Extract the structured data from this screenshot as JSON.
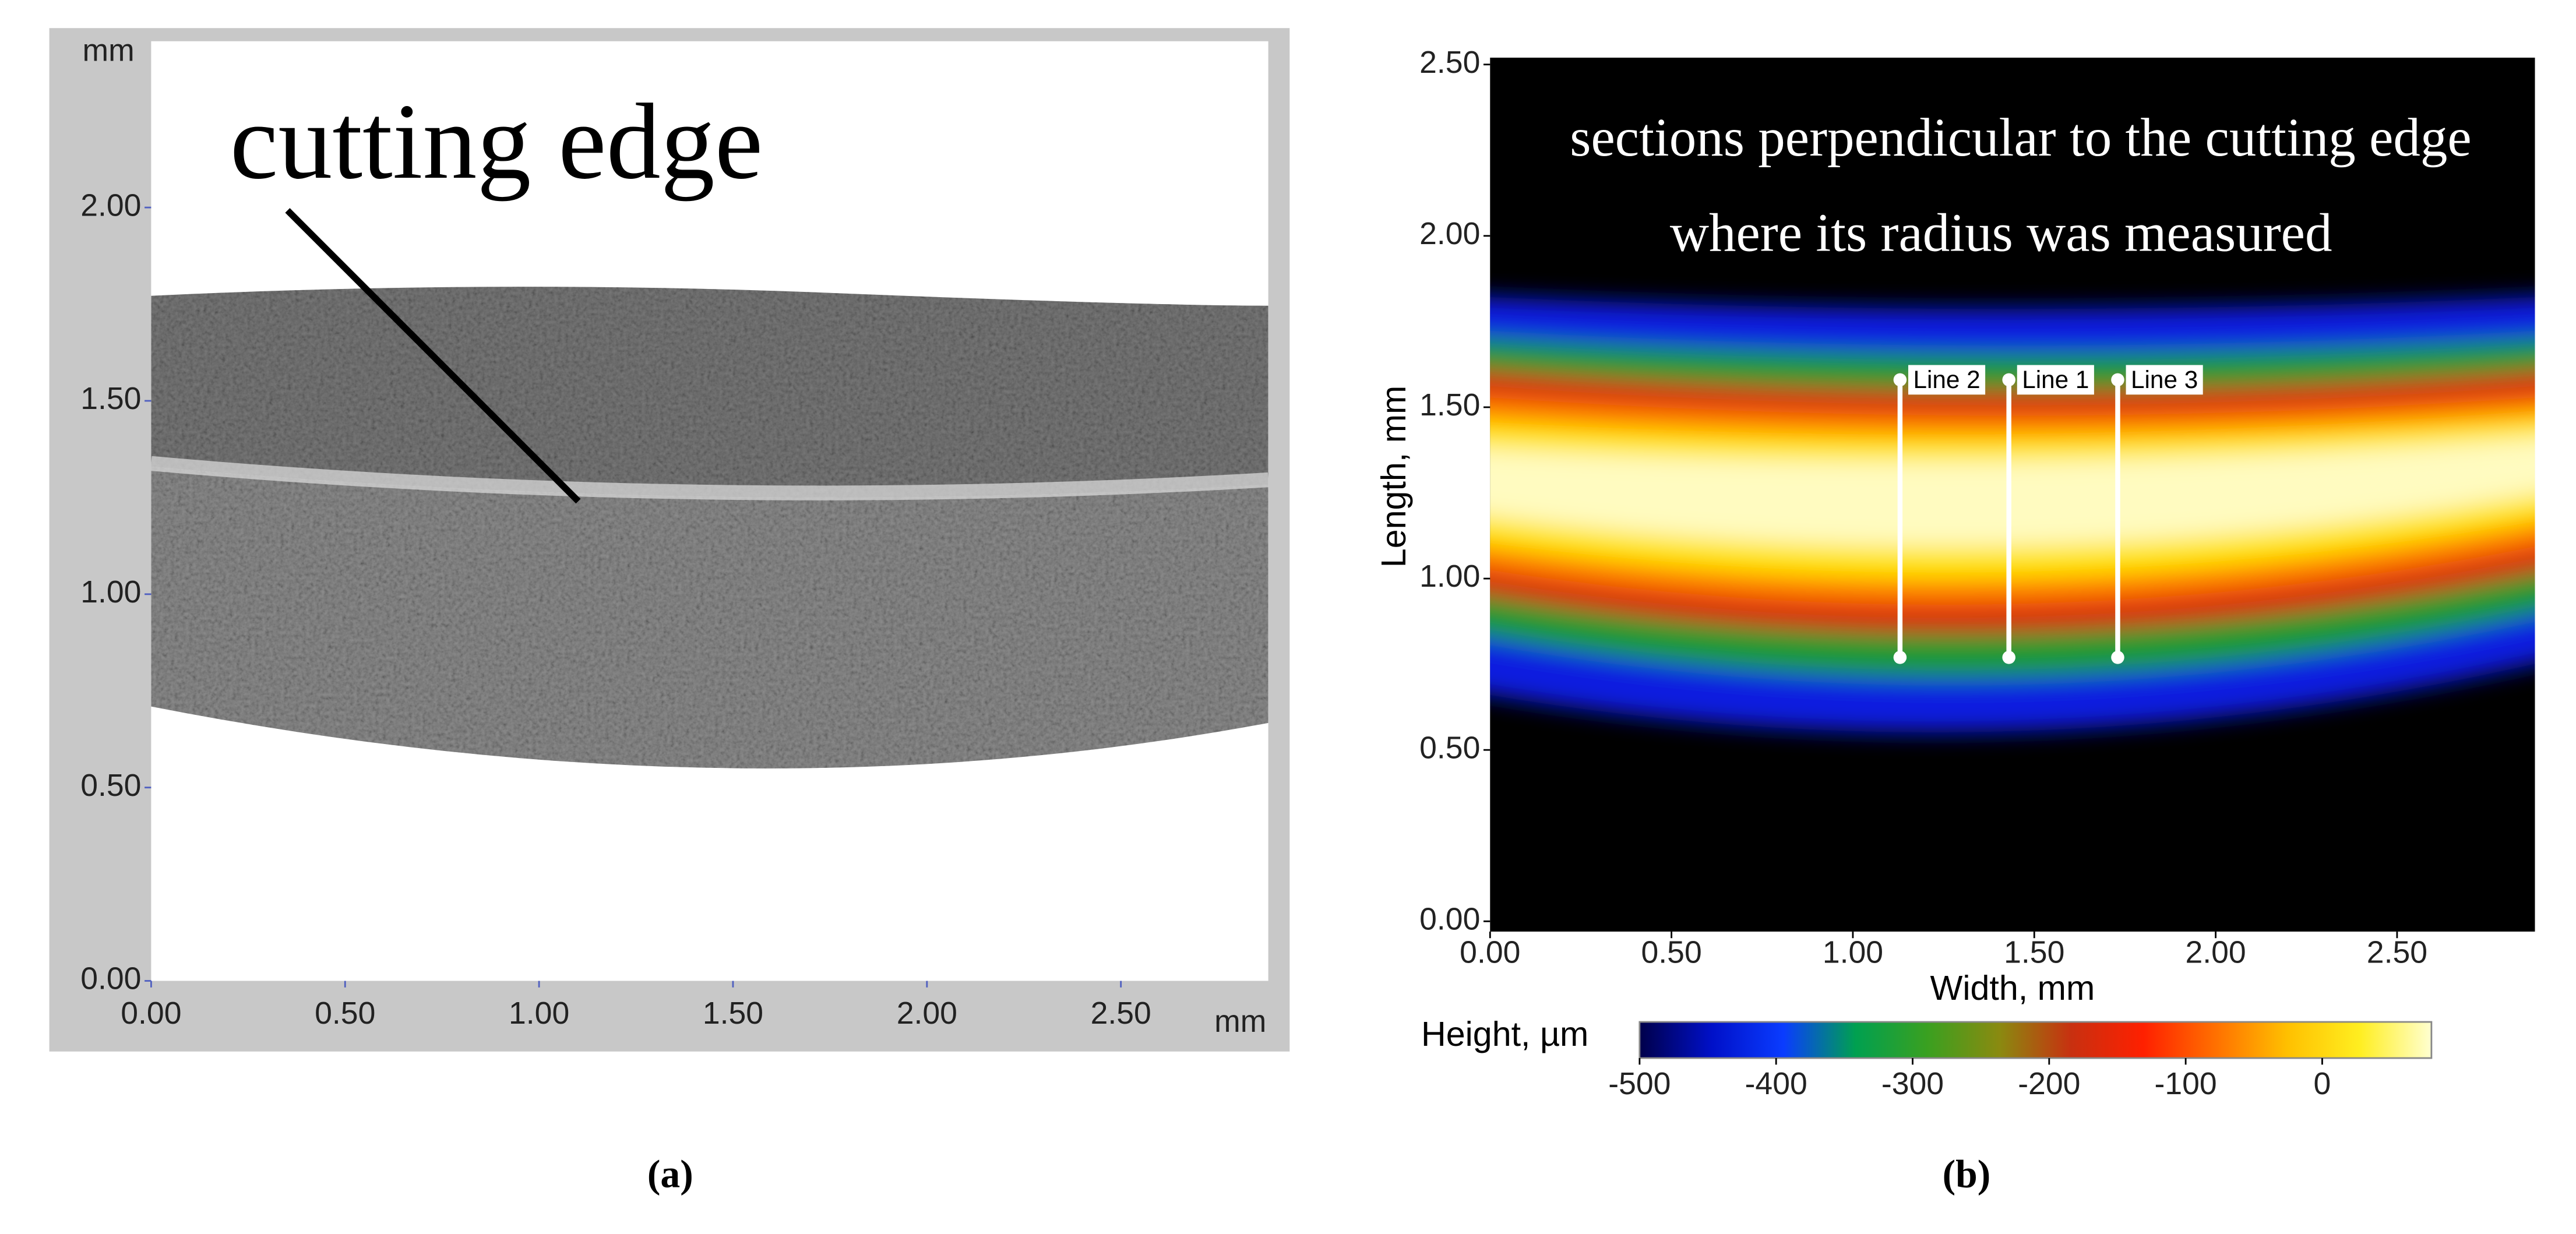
{
  "chart_data": [
    {
      "type": "image",
      "label": "(a)",
      "annotation": "cutting edge",
      "x_unit": "mm",
      "y_unit": "mm",
      "xlim": [
        0,
        2.88
      ],
      "ylim": [
        0,
        2.43
      ],
      "xticks": [
        {
          "value": 0,
          "label": "0.00"
        },
        {
          "value": 0.5,
          "label": "0.50"
        },
        {
          "value": 1,
          "label": "1.00"
        },
        {
          "value": 1.5,
          "label": "1.50"
        },
        {
          "value": 2,
          "label": "2.00"
        },
        {
          "value": 2.5,
          "label": "2.50"
        }
      ],
      "yticks": [
        {
          "value": 0,
          "label": "0.00"
        },
        {
          "value": 0.5,
          "label": "0.50"
        },
        {
          "value": 1,
          "label": "1.00"
        },
        {
          "value": 1.5,
          "label": "1.50"
        },
        {
          "value": 2,
          "label": "2.00"
        }
      ]
    },
    {
      "type": "heatmap",
      "label": "(b)",
      "annotations": [
        "sections perpendicular to the cutting edge",
        "where its radius was measured"
      ],
      "xlabel": "Width, mm",
      "ylabel": "Length, mm",
      "colorbar_label": "Height, µm",
      "xlim": [
        0,
        2.88
      ],
      "ylim": [
        -0.03,
        2.52
      ],
      "xticks": [
        {
          "value": 0,
          "label": "0.00"
        },
        {
          "value": 0.5,
          "label": "0.50"
        },
        {
          "value": 1,
          "label": "1.00"
        },
        {
          "value": 1.5,
          "label": "1.50"
        },
        {
          "value": 2,
          "label": "2.00"
        },
        {
          "value": 2.5,
          "label": "2.50"
        }
      ],
      "yticks": [
        {
          "value": 0,
          "label": "0.00"
        },
        {
          "value": 0.5,
          "label": "0.50"
        },
        {
          "value": 1,
          "label": "1.00"
        },
        {
          "value": 1.5,
          "label": "1.50"
        },
        {
          "value": 2,
          "label": "2.00"
        },
        {
          "value": 2.5,
          "label": "2.50"
        }
      ],
      "clim": [
        -500,
        80
      ],
      "cticks": [
        -500,
        -400,
        -300,
        -200,
        -100,
        0
      ],
      "colormap": [
        "#00004a",
        "#0010c8",
        "#0a3cff",
        "#00a050",
        "#3aa020",
        "#8a8a10",
        "#c83010",
        "#ff2000",
        "#ff7000",
        "#ffc000",
        "#ffee20",
        "#ffffd0"
      ],
      "lines": [
        {
          "label": "Line 2",
          "x": 1.13,
          "y": [
            1.58,
            0.77
          ]
        },
        {
          "label": "Line 1",
          "x": 1.43,
          "y": [
            1.58,
            0.77
          ]
        },
        {
          "label": "Line 3",
          "x": 1.73,
          "y": [
            1.58,
            0.77
          ]
        }
      ]
    }
  ]
}
